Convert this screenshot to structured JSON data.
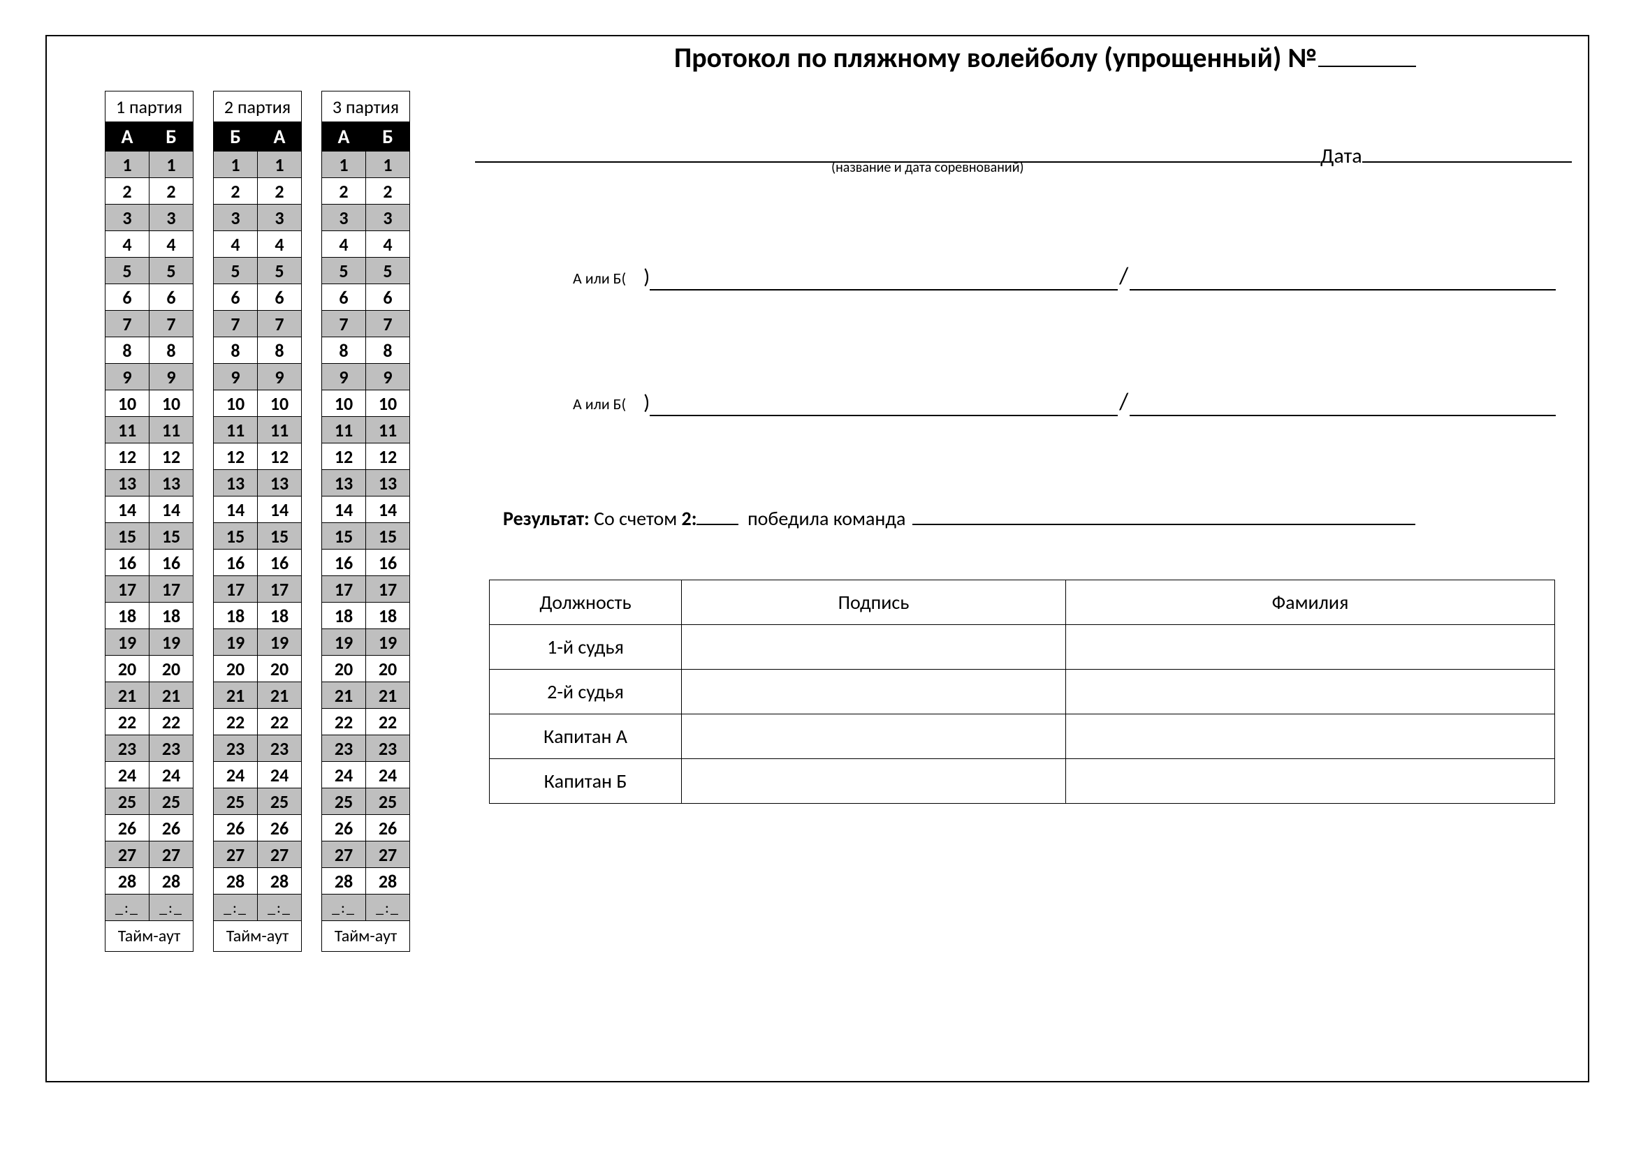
{
  "title_text": "Протокол по пляжному волейболу (упрощенный) №",
  "date_label": "Дата",
  "competition_caption": "(название и дата соревнований)",
  "team_prefix": "А или Б(",
  "team_close": ")",
  "result_label_bold1": "Результат:",
  "result_label_plain1": " Со счетом ",
  "result_label_bold2": "2:",
  "result_label_plain2": "победила команда",
  "score_sets": [
    {
      "title": "1 партия",
      "left_header": "А",
      "right_header": "Б"
    },
    {
      "title": "2 партия",
      "left_header": "Б",
      "right_header": "А"
    },
    {
      "title": "3 партия",
      "left_header": "А",
      "right_header": "Б"
    }
  ],
  "score_max": 28,
  "time_placeholder": "_:_",
  "timeout_label": "Тайм-аут",
  "sig_headers": [
    "Должность",
    "Подпись",
    "Фамилия"
  ],
  "sig_rows": [
    "1-й судья",
    "2-й судья",
    "Капитан А",
    "Капитан Б"
  ],
  "colors": {
    "page_bg": "#ffffff",
    "border": "#000000",
    "header_bg": "#000000",
    "header_fg": "#ffffff",
    "shade": "#bfbfbf"
  },
  "fontsizes": {
    "title": 40,
    "table_cell": 26,
    "form_text": 28,
    "caption": 20
  }
}
